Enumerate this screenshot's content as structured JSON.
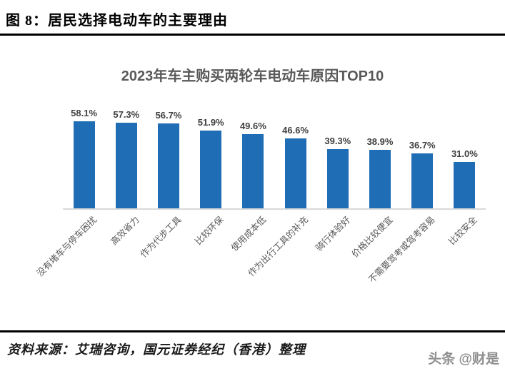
{
  "header": {
    "figure_title": "图 8：居民选择电动车的主要理由"
  },
  "chart_data": {
    "type": "bar",
    "title": "2023年车主购买两轮车电动车原因TOP10",
    "categories": [
      "没有堵车与停车困扰",
      "高效省力",
      "作为代步工具",
      "比较环保",
      "使用成本低",
      "作为出行工具的补充",
      "骑行体验好",
      "价格比较便宜",
      "不需要驾考或驾考容易",
      "比较安全"
    ],
    "values": [
      58.1,
      57.3,
      56.7,
      51.9,
      49.6,
      46.6,
      39.3,
      38.9,
      36.7,
      31.0
    ],
    "value_labels": [
      "58.1%",
      "57.3%",
      "56.7%",
      "51.9%",
      "49.6%",
      "46.6%",
      "39.3%",
      "38.9%",
      "36.7%",
      "31.0%"
    ],
    "xlabel": "",
    "ylabel": "",
    "ylim": [
      0,
      65
    ],
    "grid": false,
    "legend_position": "none",
    "bar_color": "#1f6db4",
    "axis_line_color": "#d9d9d9",
    "title_color": "#595959",
    "label_color": "#404040",
    "category_label_color": "#595959",
    "category_label_rotation_deg": 45
  },
  "footer": {
    "source": "资料来源：艾瑞咨询，国元证券经纪（香港）整理",
    "watermark": "头条 @财是"
  }
}
